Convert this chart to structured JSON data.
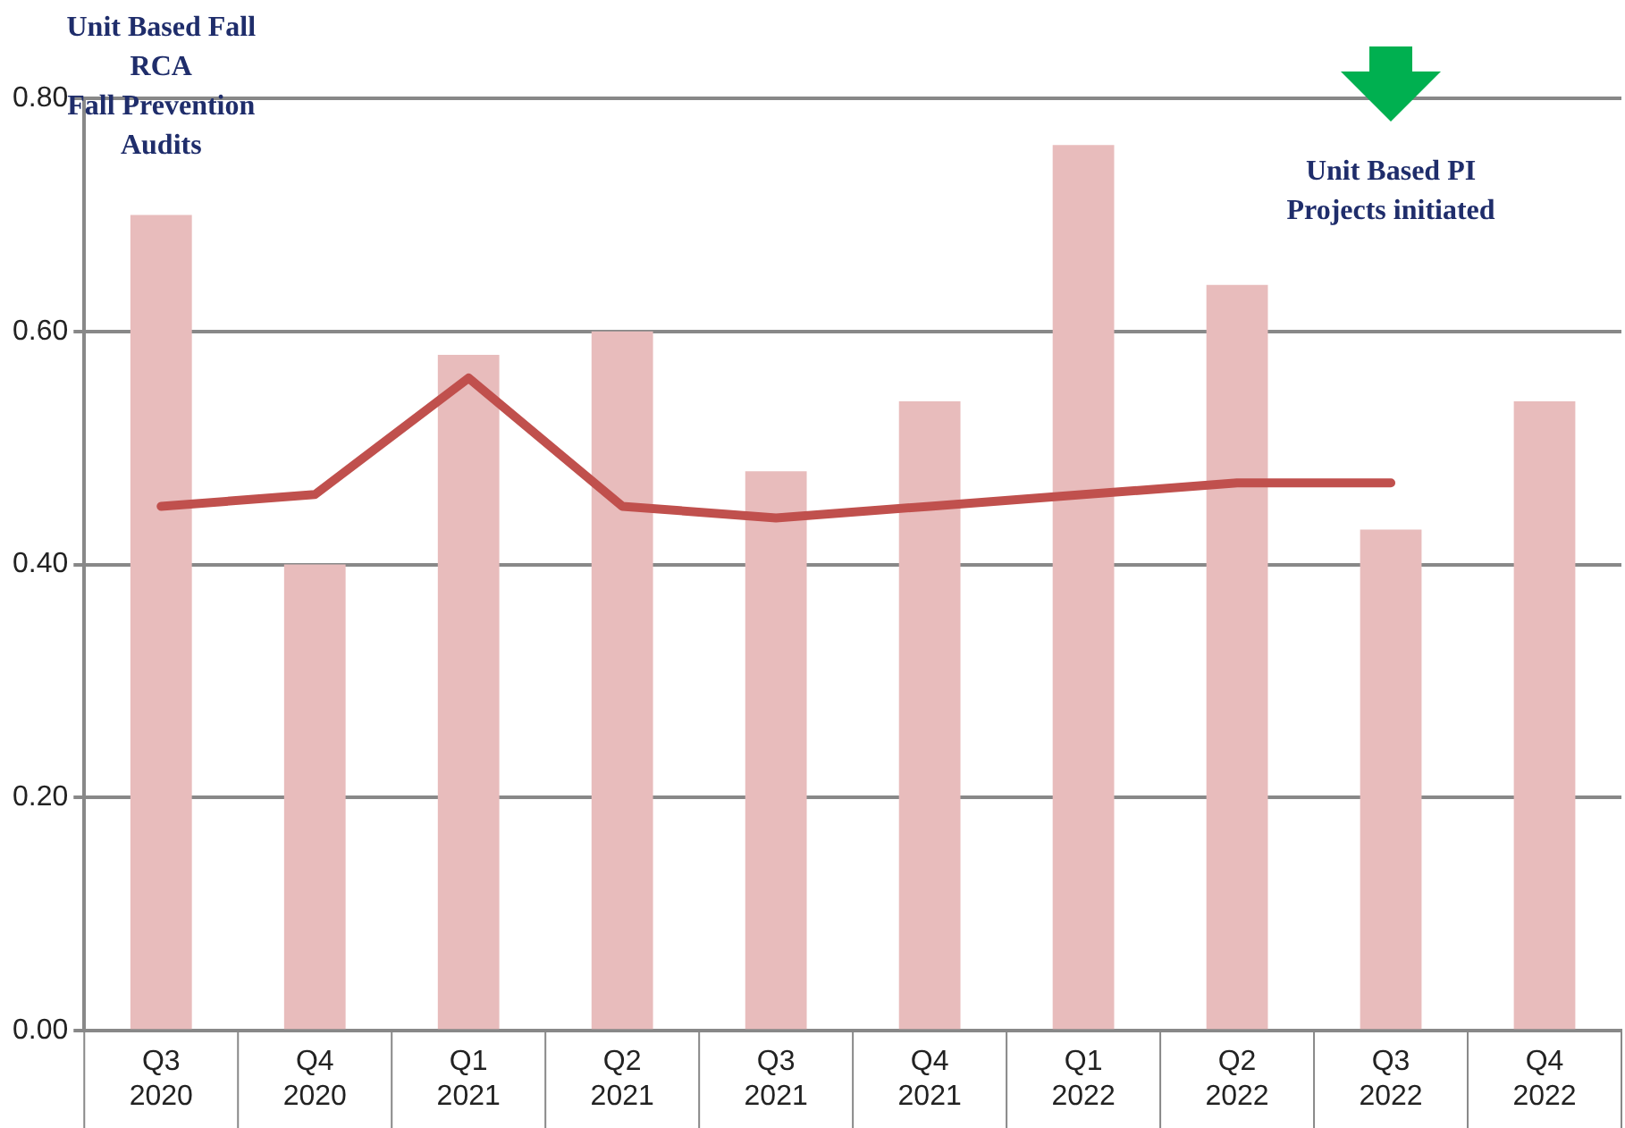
{
  "chart_data": {
    "type": "bar",
    "categories": [
      "Q3 2020",
      "Q4 2020",
      "Q1 2021",
      "Q2 2021",
      "Q3 2021",
      "Q4 2021",
      "Q1 2022",
      "Q2 2022",
      "Q3 2022",
      "Q4 2022"
    ],
    "series": [
      {
        "color": "#e8bcbc",
        "values": [
          0.7,
          0.4,
          0.58,
          0.6,
          0.48,
          0.54,
          0.76,
          0.64,
          0.43,
          0.54
        ]
      },
      {
        "type": "line",
        "color": "#c0504d",
        "values": [
          0.45,
          0.46,
          0.56,
          0.45,
          0.44,
          0.45,
          0.46,
          0.47,
          0.47,
          null
        ]
      }
    ],
    "ylim": [
      0,
      0.8
    ],
    "yticks": [
      {
        "value": 0,
        "label": "0.00"
      },
      {
        "value": 0.2,
        "label": "0.20"
      },
      {
        "value": 0.4,
        "label": "0.40"
      },
      {
        "value": 0.6,
        "label": "0.60"
      },
      {
        "value": 0.8,
        "label": "0.80"
      }
    ],
    "grid": "y",
    "legend": false,
    "marker": "none",
    "annotations": [
      "Unit Based Fall\nRCA\nFall Prevention\nAudits",
      "Unit Based PI\nProjects initiated"
    ]
  }
}
